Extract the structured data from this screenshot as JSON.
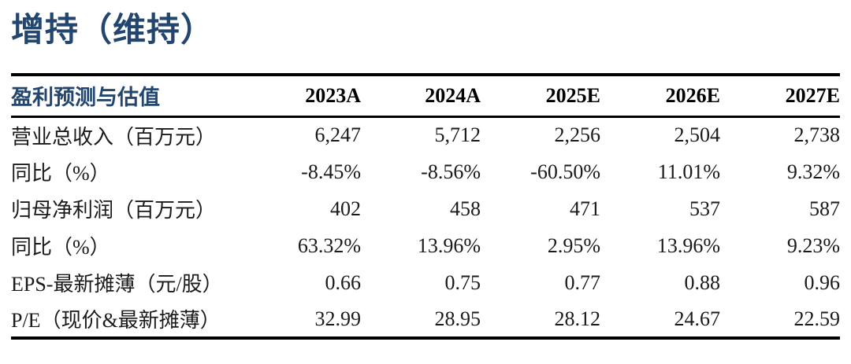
{
  "rating": {
    "title": "增持（维持）"
  },
  "colors": {
    "accent_navy": "#23466e",
    "rule_black": "#000000",
    "text_black": "#1a1a1a",
    "background": "#ffffff"
  },
  "table": {
    "header": {
      "label": "盈利预测与估值",
      "columns": [
        "2023A",
        "2024A",
        "2025E",
        "2026E",
        "2027E"
      ]
    },
    "rows": [
      {
        "label": "营业总收入（百万元）",
        "values": [
          "6,247",
          "5,712",
          "2,256",
          "2,504",
          "2,738"
        ]
      },
      {
        "label": "同比（%）",
        "values": [
          "-8.45%",
          "-8.56%",
          "-60.50%",
          "11.01%",
          "9.32%"
        ]
      },
      {
        "label": "归母净利润（百万元）",
        "values": [
          "402",
          "458",
          "471",
          "537",
          "587"
        ]
      },
      {
        "label": "同比（%）",
        "values": [
          "63.32%",
          "13.96%",
          "2.95%",
          "13.96%",
          "9.23%"
        ]
      },
      {
        "label": "EPS-最新摊薄（元/股）",
        "values": [
          "0.66",
          "0.75",
          "0.77",
          "0.88",
          "0.96"
        ]
      },
      {
        "label": "P/E（现价&最新摊薄）",
        "values": [
          "32.99",
          "28.95",
          "28.12",
          "24.67",
          "22.59"
        ]
      }
    ]
  }
}
